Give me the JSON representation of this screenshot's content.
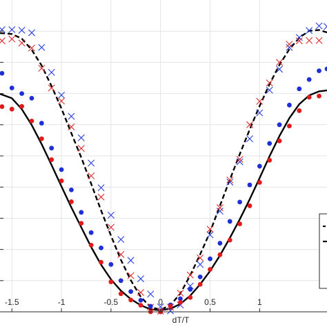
{
  "chart_data": {
    "type": "scatter",
    "title": "",
    "xlabel": "dT/T",
    "ylabel": "",
    "xlim": [
      -1.62,
      1.68
    ],
    "ylim": [
      0,
      1.0
    ],
    "x_ticks": [
      -1.5,
      -1,
      -0.5,
      0,
      0.5,
      1
    ],
    "x_tick_labels": [
      "-1.5",
      "-1",
      "-0.5",
      "0",
      "0.5",
      "1"
    ],
    "y_ticks": [
      0.1,
      0.2,
      0.3,
      0.4,
      0.5,
      0.6,
      0.7,
      0.8,
      0.9
    ],
    "grid": true,
    "legend": "right (partially visible, entries cut off)",
    "series": [
      {
        "style": "dashed-line",
        "color": "#000000",
        "x": [
          -1.62,
          -1.5,
          -1.4,
          -1.3,
          -1.2,
          -1.1,
          -1.0,
          -0.9,
          -0.8,
          -0.7,
          -0.6,
          -0.5,
          -0.4,
          -0.3,
          -0.2,
          -0.1,
          0.0,
          0.1,
          0.2,
          0.3,
          0.4,
          0.5,
          0.6,
          0.7,
          0.8,
          0.9,
          1.0,
          1.1,
          1.2,
          1.3,
          1.4,
          1.5,
          1.6,
          1.68
        ],
        "y": [
          0.894,
          0.891,
          0.876,
          0.84,
          0.79,
          0.724,
          0.652,
          0.573,
          0.495,
          0.411,
          0.325,
          0.244,
          0.167,
          0.101,
          0.048,
          0.015,
          0.007,
          0.021,
          0.059,
          0.117,
          0.184,
          0.256,
          0.341,
          0.424,
          0.506,
          0.585,
          0.66,
          0.73,
          0.792,
          0.842,
          0.879,
          0.901,
          0.904,
          0.896
        ]
      },
      {
        "style": "solid-line",
        "color": "#000000",
        "x": [
          -1.62,
          -1.5,
          -1.4,
          -1.3,
          -1.2,
          -1.1,
          -1.0,
          -0.9,
          -0.8,
          -0.7,
          -0.6,
          -0.5,
          -0.4,
          -0.3,
          -0.2,
          -0.1,
          0.0,
          0.1,
          0.2,
          0.3,
          0.4,
          0.5,
          0.6,
          0.7,
          0.8,
          0.9,
          1.0,
          1.1,
          1.2,
          1.3,
          1.4,
          1.5,
          1.6,
          1.68
        ],
        "y": [
          0.699,
          0.685,
          0.65,
          0.599,
          0.538,
          0.471,
          0.402,
          0.335,
          0.271,
          0.208,
          0.151,
          0.104,
          0.068,
          0.041,
          0.021,
          0.008,
          0.005,
          0.01,
          0.025,
          0.052,
          0.088,
          0.131,
          0.181,
          0.237,
          0.297,
          0.361,
          0.429,
          0.499,
          0.564,
          0.621,
          0.666,
          0.694,
          0.707,
          0.71
        ]
      },
      {
        "marker": "x",
        "color": "#2a3fdd",
        "x": [
          -1.6,
          -1.5,
          -1.4,
          -1.3,
          -1.2,
          -1.1,
          -1.0,
          -0.9,
          -0.8,
          -0.7,
          -0.6,
          -0.5,
          -0.4,
          -0.3,
          -0.2,
          -0.1,
          0.0,
          0.1,
          0.2,
          0.3,
          0.4,
          0.5,
          0.6,
          0.7,
          0.8,
          0.9,
          1.0,
          1.1,
          1.2,
          1.3,
          1.4,
          1.5,
          1.6,
          1.68
        ],
        "y": [
          0.905,
          0.905,
          0.903,
          0.895,
          0.848,
          0.768,
          0.695,
          0.627,
          0.558,
          0.477,
          0.398,
          0.31,
          0.232,
          0.165,
          0.106,
          0.057,
          0.016,
          0.003,
          0.022,
          0.083,
          0.152,
          0.247,
          0.323,
          0.416,
          0.481,
          0.555,
          0.638,
          0.711,
          0.778,
          0.848,
          0.88,
          0.902,
          0.917,
          0.915
        ]
      },
      {
        "marker": "x",
        "color": "#dd2a2a",
        "x": [
          -1.6,
          -1.5,
          -1.4,
          -1.3,
          -1.2,
          -1.1,
          -1.0,
          -0.9,
          -0.8,
          -0.7,
          -0.6,
          -0.5,
          -0.4,
          -0.3,
          -0.2,
          -0.1,
          0.0,
          0.1,
          0.2,
          0.3,
          0.4,
          0.5,
          0.6,
          0.7,
          0.8,
          0.9,
          1.0,
          1.1,
          1.2,
          1.3,
          1.4,
          1.5,
          1.6
        ],
        "y": [
          0.869,
          0.875,
          0.862,
          0.846,
          0.781,
          0.718,
          0.676,
          0.593,
          0.524,
          0.436,
          0.368,
          0.271,
          0.184,
          0.116,
          0.062,
          0.015,
          0.002,
          0.015,
          0.06,
          0.118,
          0.173,
          0.265,
          0.334,
          0.423,
          0.489,
          0.6,
          0.675,
          0.734,
          0.8,
          0.858,
          0.869,
          0.87,
          0.87
        ]
      },
      {
        "marker": "dot",
        "color": "#1f2fd6",
        "x": [
          -1.6,
          -1.5,
          -1.4,
          -1.3,
          -1.2,
          -1.1,
          -1.0,
          -0.9,
          -0.8,
          -0.7,
          -0.6,
          -0.5,
          -0.4,
          -0.3,
          -0.2,
          -0.1,
          0.0,
          0.1,
          0.2,
          0.3,
          0.4,
          0.5,
          0.6,
          0.7,
          0.8,
          0.9,
          1.0,
          1.1,
          1.2,
          1.3,
          1.4,
          1.5,
          1.6,
          1.68
        ],
        "y": [
          0.765,
          0.718,
          0.7,
          0.685,
          0.605,
          0.525,
          0.456,
          0.391,
          0.319,
          0.254,
          0.205,
          0.152,
          0.1,
          0.065,
          0.037,
          0.018,
          0.0,
          0.022,
          0.042,
          0.072,
          0.112,
          0.17,
          0.22,
          0.29,
          0.352,
          0.407,
          0.467,
          0.54,
          0.6,
          0.663,
          0.715,
          0.745,
          0.773,
          0.779
        ]
      },
      {
        "marker": "dot",
        "color": "#e11b1b",
        "x": [
          -1.6,
          -1.5,
          -1.4,
          -1.3,
          -1.2,
          -1.1,
          -1.0,
          -0.9,
          -0.8,
          -0.7,
          -0.6,
          -0.5,
          -0.4,
          -0.3,
          -0.2,
          -0.1,
          0.0,
          0.1,
          0.2,
          0.3,
          0.4,
          0.5,
          0.6,
          0.7,
          0.8,
          0.9,
          1.0,
          1.1,
          1.2,
          1.3,
          1.4,
          1.5,
          1.6
        ],
        "y": [
          0.658,
          0.65,
          0.659,
          0.612,
          0.555,
          0.488,
          0.42,
          0.353,
          0.284,
          0.214,
          0.159,
          0.096,
          0.058,
          0.038,
          0.021,
          0.0,
          0.0,
          0.018,
          0.03,
          0.046,
          0.088,
          0.136,
          0.183,
          0.23,
          0.282,
          0.34,
          0.415,
          0.486,
          0.548,
          0.596,
          0.645,
          0.688,
          0.692
        ]
      }
    ]
  }
}
